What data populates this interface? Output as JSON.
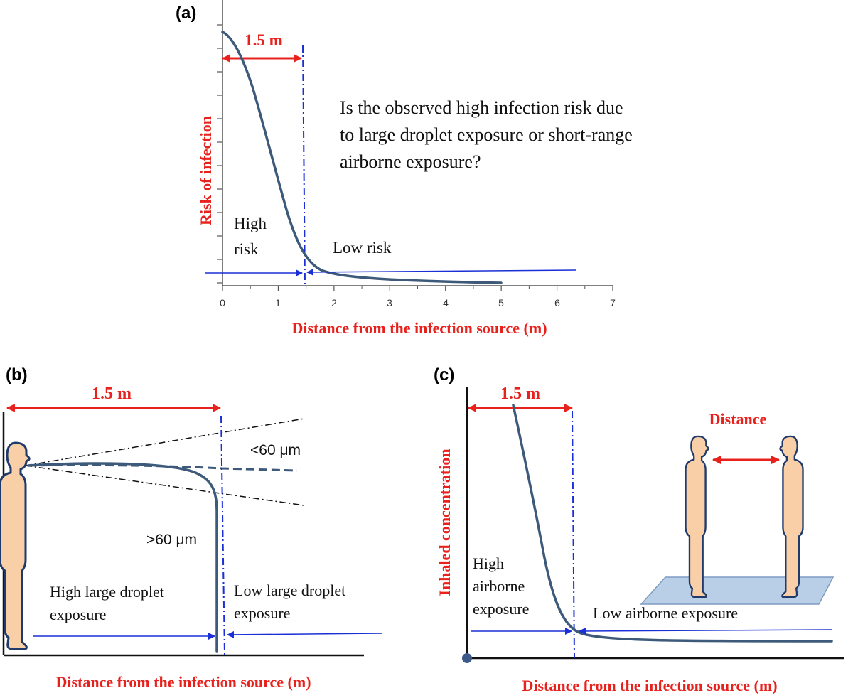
{
  "colors": {
    "accent_red": "#e8211d",
    "curve_blue": "#3d5a7a",
    "marker_blue": "#1a2fd6",
    "skin": "#f9cfa7",
    "outline_navy": "#1f3a6b",
    "floor_blue": "#b9cfe8"
  },
  "panel_a": {
    "label": "(a)",
    "ylabel": "Risk of infection",
    "xlabel": "Distance from the infection source (m)",
    "x_ticks": [
      "0",
      "1",
      "2",
      "3",
      "4",
      "5",
      "6",
      "7"
    ],
    "span_label": "1.5 m",
    "question_lines": [
      "Is the observed high infection risk due",
      "to large droplet exposure or short-range",
      "airborne exposure?"
    ],
    "high_label_lines": [
      "High",
      "risk"
    ],
    "low_label": "Low risk"
  },
  "panel_b": {
    "label": "(b)",
    "span_label": "1.5 m",
    "small_label": "<60 μm",
    "large_label": ">60 μm",
    "high_label_lines": [
      "High large droplet",
      "exposure"
    ],
    "low_label_lines": [
      "Low large droplet",
      "exposure"
    ],
    "xlabel": "Distance from the infection source (m)"
  },
  "panel_c": {
    "label": "(c)",
    "span_label": "1.5 m",
    "ylabel": "Inhaled concentration",
    "distance_label": "Distance",
    "high_label_lines": [
      "High",
      "airborne",
      "exposure"
    ],
    "low_label": "Low airborne exposure",
    "xlabel": "Distance from the infection source (m)"
  },
  "icons": [
    "person-figure-icon",
    "double-arrow-icon"
  ]
}
